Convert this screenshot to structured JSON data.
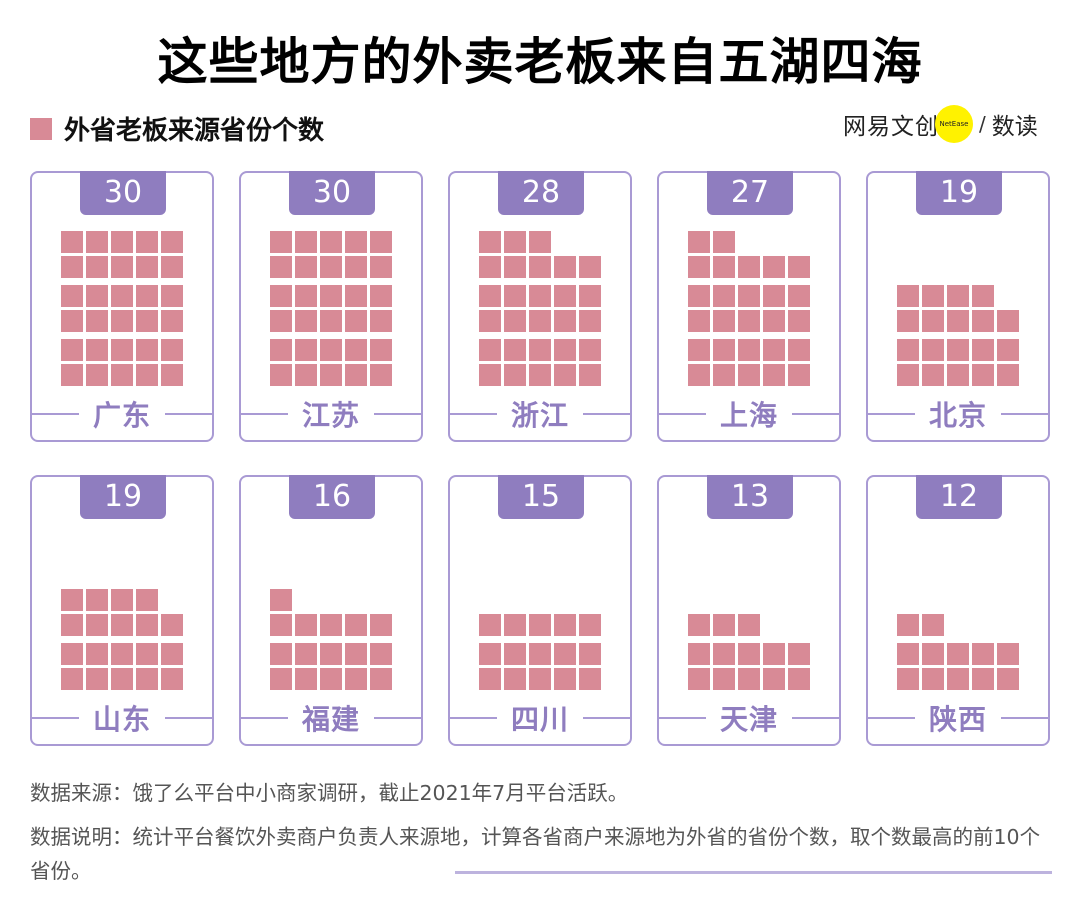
{
  "header": {
    "title": "这些地方的外卖老板来自五湖四海",
    "legend_label": "外省老板来源省份个数",
    "legend_color": "#d88a96"
  },
  "brand": {
    "cn": "网易文创",
    "en": "NetEase",
    "slash": "/",
    "sub": "数读",
    "circle_color": "#fff200"
  },
  "colors": {
    "badge": "#8f7dbf",
    "square": "#d88a96",
    "border": "#a99ad4",
    "label": "#8f7dbf"
  },
  "cards": [
    {
      "province": "广东",
      "value": "30"
    },
    {
      "province": "江苏",
      "value": "30"
    },
    {
      "province": "浙江",
      "value": "28"
    },
    {
      "province": "上海",
      "value": "27"
    },
    {
      "province": "北京",
      "value": "19"
    },
    {
      "province": "山东",
      "value": "19"
    },
    {
      "province": "福建",
      "value": "16"
    },
    {
      "province": "四川",
      "value": "15"
    },
    {
      "province": "天津",
      "value": "13"
    },
    {
      "province": "陕西",
      "value": "12"
    }
  ],
  "footer": {
    "source": "数据来源：饿了么平台中小商家调研，截止2021年7月平台活跃。",
    "note": "数据说明：统计平台餐饮外卖商户负责人来源地，计算各省商户来源地为外省的省份个数，取个数最高的前10个省份。"
  },
  "chart_data": {
    "type": "waffle",
    "title": "这些地方的外卖老板来自五湖四海",
    "subtitle": "外省老板来源省份个数",
    "categories": [
      "广东",
      "江苏",
      "浙江",
      "上海",
      "北京",
      "山东",
      "福建",
      "四川",
      "天津",
      "陕西"
    ],
    "values": [
      30,
      30,
      28,
      27,
      19,
      19,
      16,
      15,
      13,
      12
    ],
    "unit_per_square": 1,
    "squares_per_row": 5,
    "legend": [
      {
        "label": "外省老板来源省份个数",
        "color": "#d88a96"
      }
    ],
    "source": "饿了么平台中小商家调研，截止2021年7月平台活跃",
    "layout": {
      "rows": 2,
      "columns": 5,
      "grid": false
    }
  }
}
